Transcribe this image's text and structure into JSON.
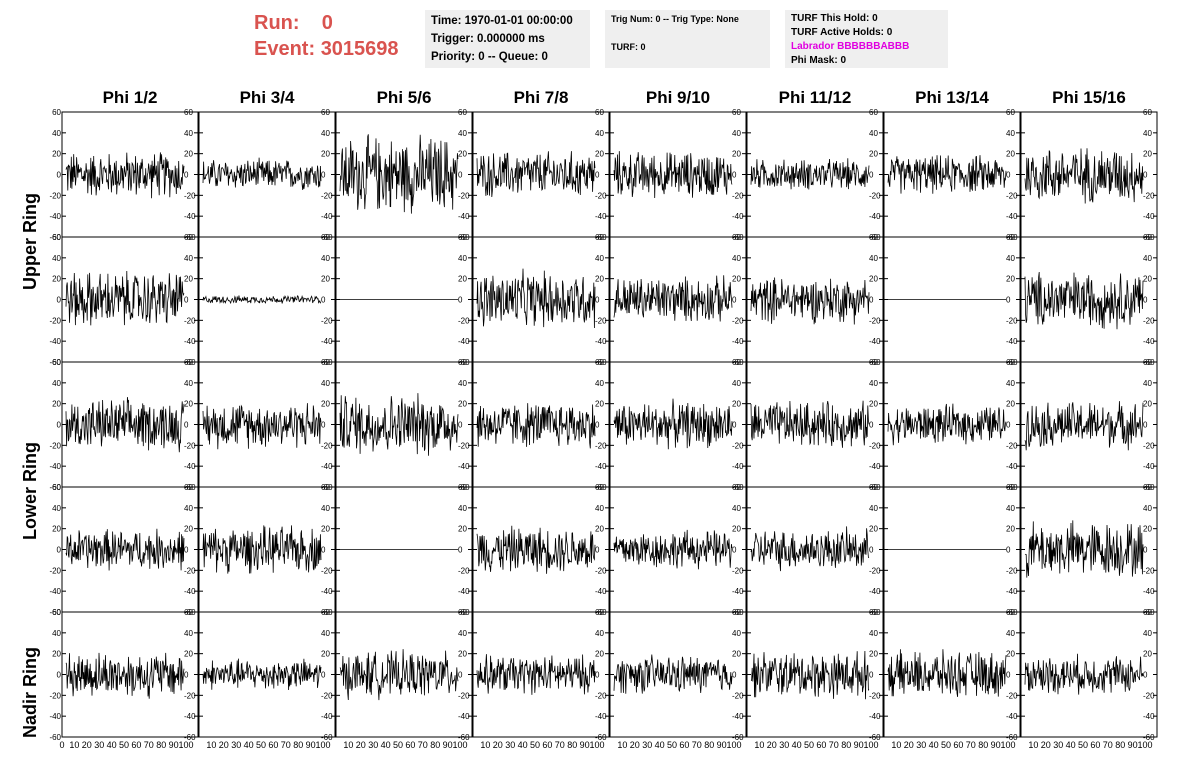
{
  "run": {
    "run_label": "Run:",
    "run_value": "0",
    "event_label": "Event:",
    "event_value": "3015698",
    "color": "#d9534f"
  },
  "time_box": {
    "time": "Time: 1970-01-01 00:00:00",
    "trigger": "Trigger: 0.000000 ms",
    "priority": "Priority: 0 -- Queue: 0"
  },
  "trig_box": {
    "trig": "Trig Num: 0 -- Trig Type: None",
    "turf": "TURF: 0"
  },
  "turf_box": {
    "hold": "TURF This Hold: 0",
    "active": "TURF Active Holds: 0",
    "labrador": "Labrador BBBBBBABBB",
    "phimask": "Phi Mask: 0",
    "labrador_color": "#e000e0"
  },
  "columns": [
    "Phi 1/2",
    "Phi 3/4",
    "Phi 5/6",
    "Phi 7/8",
    "Phi 9/10",
    "Phi 11/12",
    "Phi 13/14",
    "Phi 15/16"
  ],
  "rings": {
    "upper": "Upper Ring",
    "lower": "Lower Ring",
    "nadir": "Nadir Ring"
  },
  "chart_data": {
    "type": "line",
    "description_rows": 5,
    "description_cols": 8,
    "ylim": [
      -60,
      60
    ],
    "xlim": [
      0,
      100
    ],
    "y_ticks": [
      "60",
      "40",
      "20",
      "0",
      "-20",
      "-40",
      "-60"
    ],
    "x_ticks": [
      "0",
      "10",
      "20",
      "30",
      "40",
      "50",
      "60",
      "70",
      "80",
      "90",
      "100"
    ],
    "amplitudes": [
      [
        18,
        12,
        30,
        18,
        18,
        12,
        15,
        22
      ],
      [
        22,
        3,
        0,
        22,
        18,
        18,
        0,
        22
      ],
      [
        20,
        18,
        24,
        18,
        18,
        18,
        15,
        18
      ],
      [
        16,
        18,
        0,
        18,
        15,
        16,
        0,
        22
      ],
      [
        18,
        12,
        18,
        15,
        15,
        18,
        18,
        15
      ]
    ]
  }
}
